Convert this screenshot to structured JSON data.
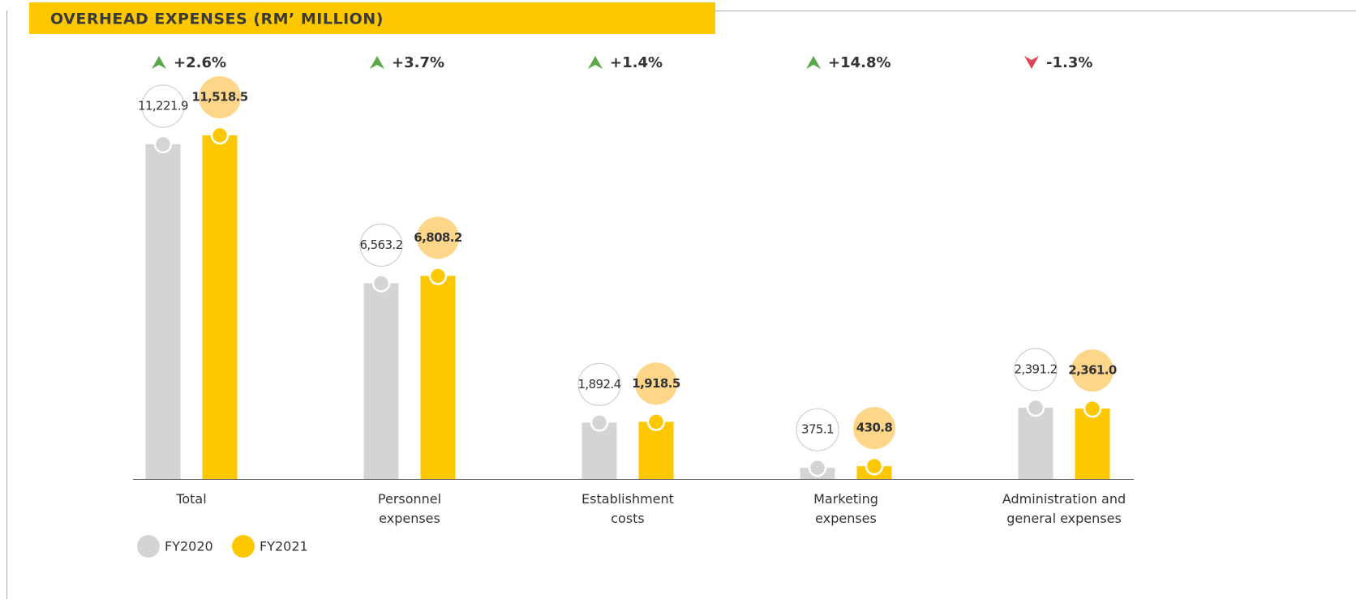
{
  "chart_data": {
    "type": "bar",
    "title": "OVERHEAD EXPENSES (RM’ MILLION)",
    "categories": [
      "Total",
      "Personnel\nexpenses",
      "Establishment\ncosts",
      "Marketing\nexpenses",
      "Administration and\ngeneral expenses"
    ],
    "series": [
      {
        "name": "FY2020",
        "color": "#d4d4d6",
        "values": [
          11221.9,
          6563.2,
          1892.4,
          375.1,
          2391.2
        ],
        "value_labels": [
          "11,221.9",
          "6,563.2",
          "1,892.4",
          "375.1",
          "2,391.2"
        ]
      },
      {
        "name": "FY2021",
        "color": "#fdc800",
        "values": [
          11518.5,
          6808.2,
          1918.5,
          430.8,
          2361.0
        ],
        "value_labels": [
          "11,518.5",
          "6,808.2",
          "1,918.5",
          "430.8",
          "2,361.0"
        ]
      }
    ],
    "changes": [
      {
        "value": 2.6,
        "label": "+2.6%"
      },
      {
        "value": 3.7,
        "label": "+3.7%"
      },
      {
        "value": 1.4,
        "label": "+1.4%"
      },
      {
        "value": 14.8,
        "label": "+14.8%"
      },
      {
        "value": -1.3,
        "label": "-1.3%"
      }
    ]
  }
}
